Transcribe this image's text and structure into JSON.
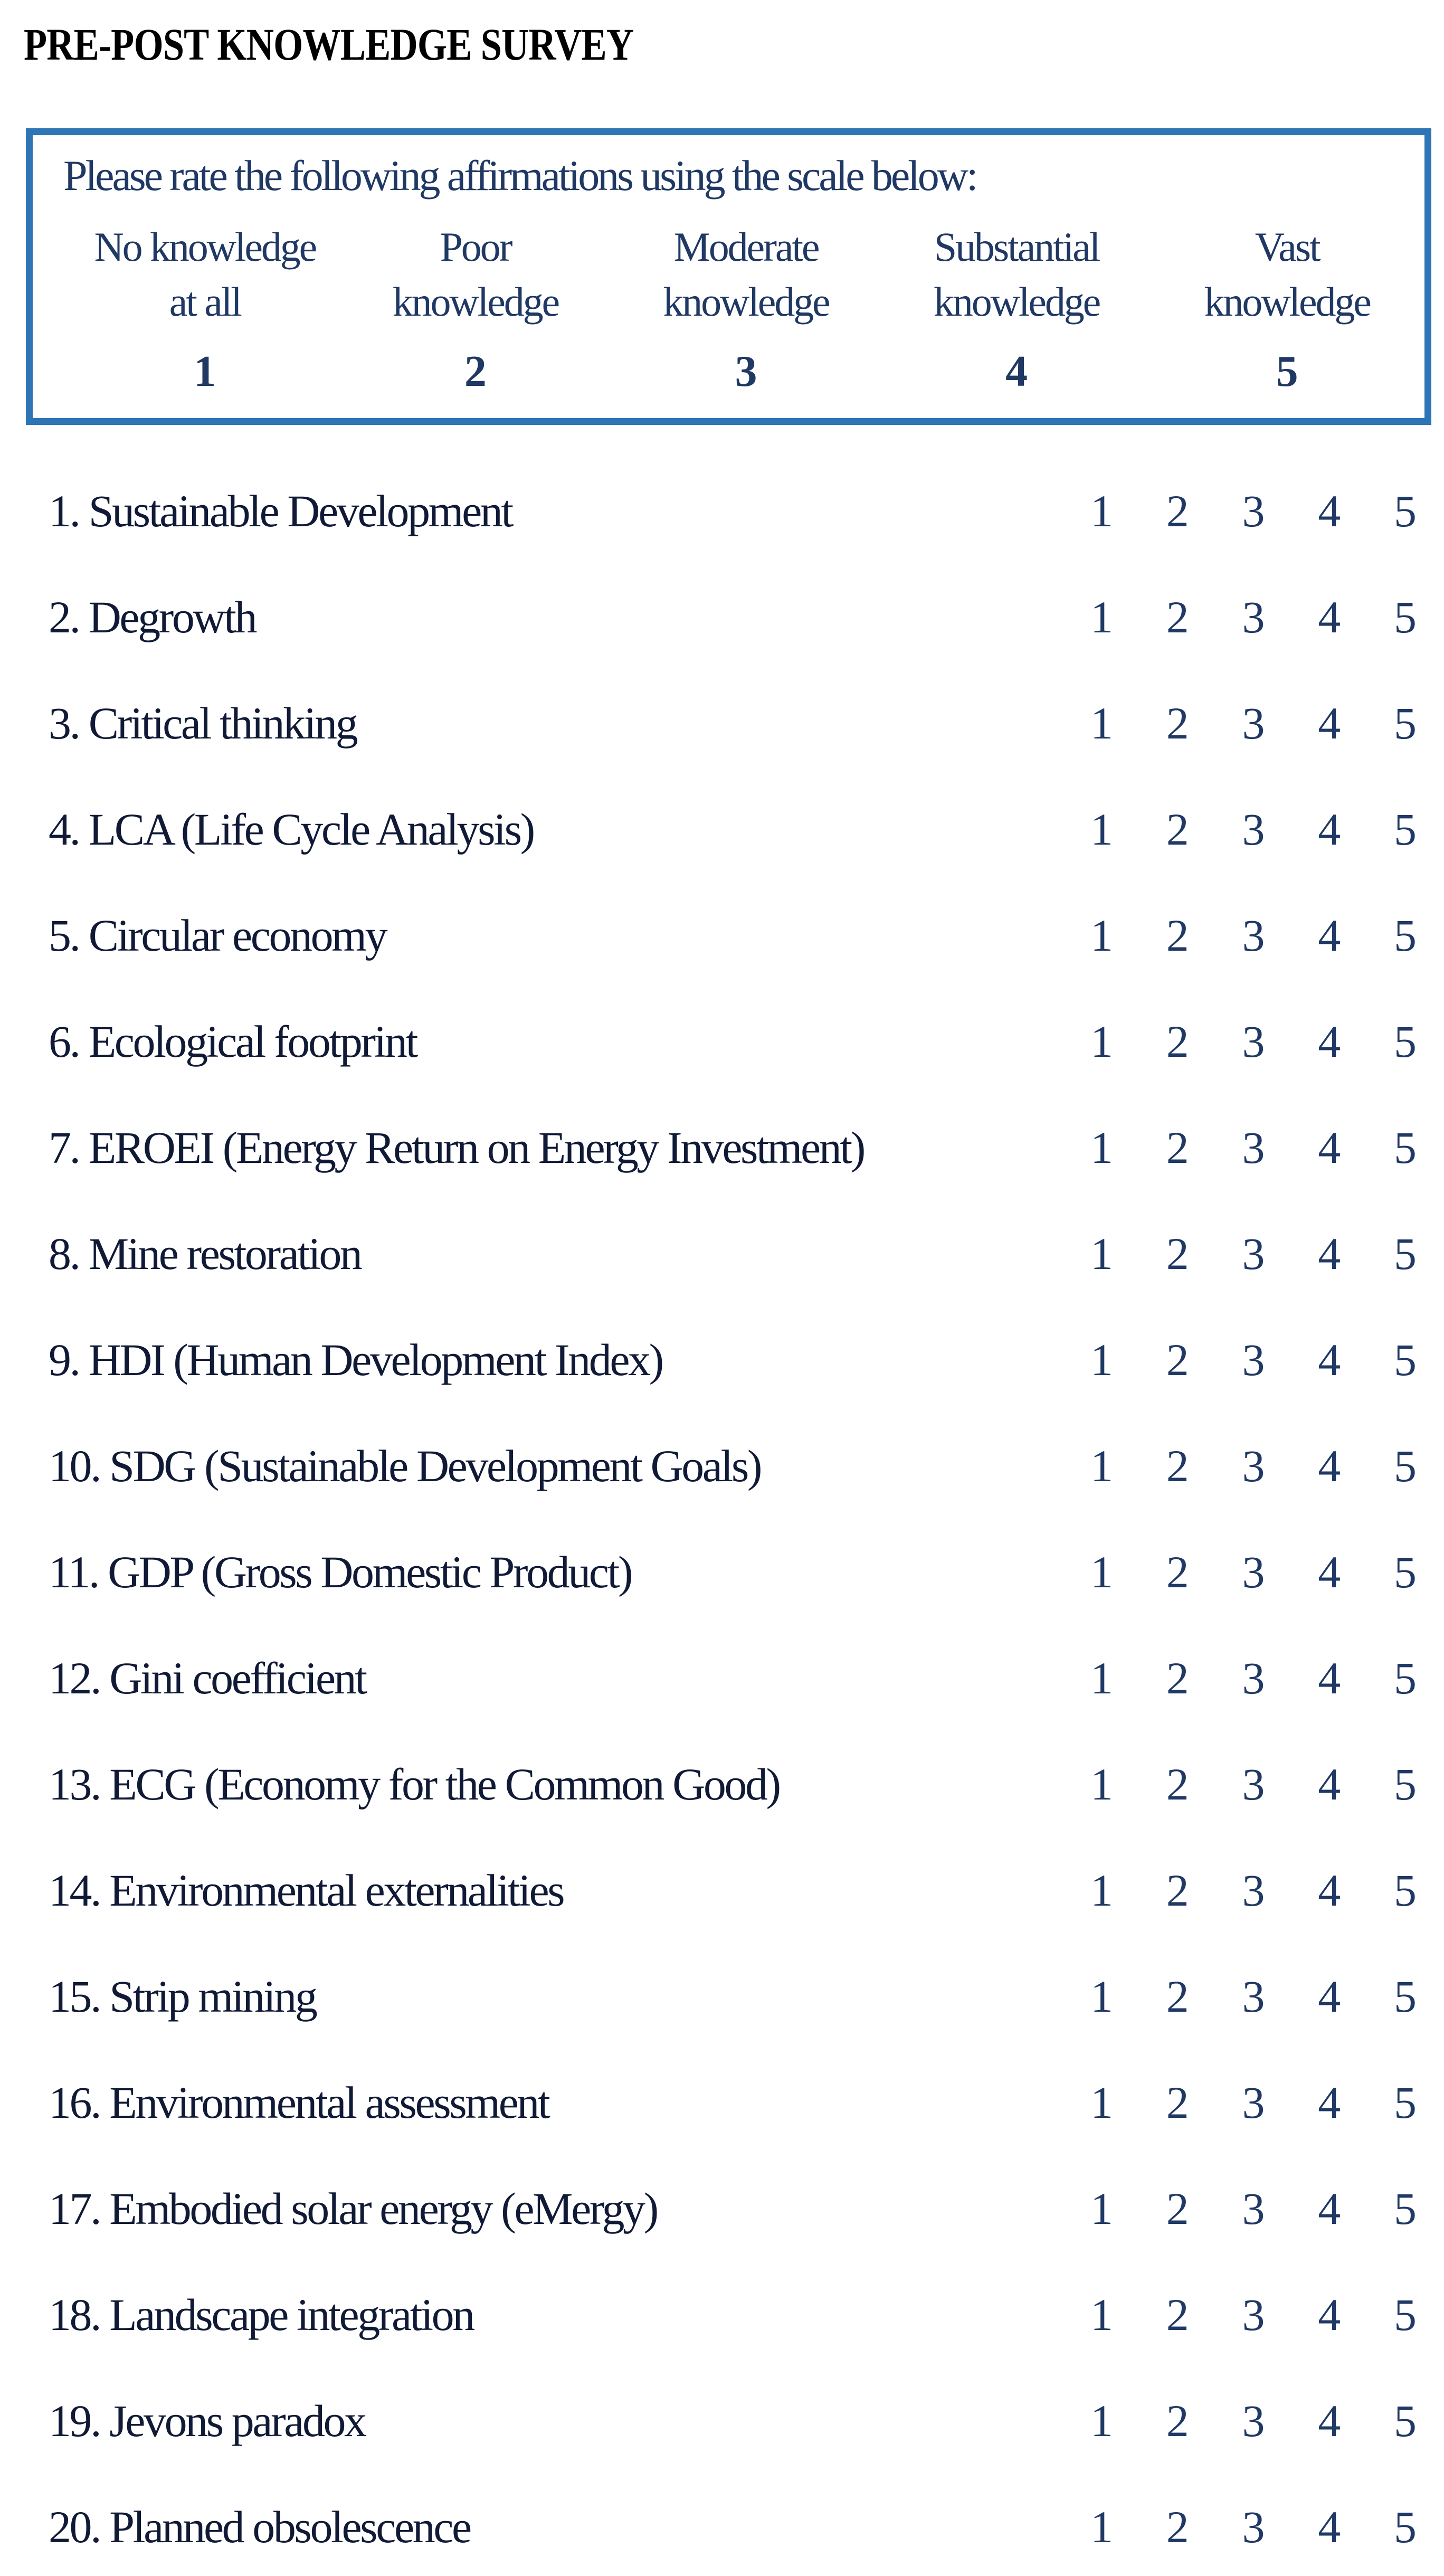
{
  "title": "PRE-POST KNOWLEDGE SURVEY",
  "scale_box": {
    "instructions": "Please rate the following affirmations using the scale below:",
    "options": [
      {
        "line1": "No knowledge",
        "line2": "at all",
        "value": "1"
      },
      {
        "line1": "Poor",
        "line2": "knowledge",
        "value": "2"
      },
      {
        "line1": "Moderate",
        "line2": "knowledge",
        "value": "3"
      },
      {
        "line1": "Substantial",
        "line2": "knowledge",
        "value": "4"
      },
      {
        "line1": "Vast",
        "line2": "knowledge",
        "value": "5"
      }
    ]
  },
  "rating_values": [
    "1",
    "2",
    "3",
    "4",
    "5"
  ],
  "items": [
    {
      "number": "1.",
      "text": "Sustainable Development"
    },
    {
      "number": "2.",
      "text": "Degrowth"
    },
    {
      "number": "3.",
      "text": "Critical thinking"
    },
    {
      "number": "4.",
      "text": "LCA (Life Cycle Analysis)"
    },
    {
      "number": "5.",
      "text": "Circular economy"
    },
    {
      "number": "6.",
      "text": "Ecological footprint"
    },
    {
      "number": "7.",
      "text": "EROEI (Energy Return on Energy Investment)"
    },
    {
      "number": "8.",
      "text": "Mine restoration"
    },
    {
      "number": "9.",
      "text": "HDI (Human Development Index)"
    },
    {
      "number": "10.",
      "text": "SDG (Sustainable Development Goals)"
    },
    {
      "number": "11.",
      "text": "GDP (Gross Domestic Product)"
    },
    {
      "number": "12.",
      "text": "Gini coefficient"
    },
    {
      "number": "13.",
      "text": "ECG (Economy for the Common Good)"
    },
    {
      "number": "14.",
      "text": "Environmental externalities"
    },
    {
      "number": "15.",
      "text": "Strip mining"
    },
    {
      "number": "16.",
      "text": "Environmental assessment"
    },
    {
      "number": "17.",
      "text": "Embodied solar energy (eMergy)"
    },
    {
      "number": "18.",
      "text": "Landscape integration"
    },
    {
      "number": "19.",
      "text": "Jevons paradox"
    },
    {
      "number": "20.",
      "text": "Planned obsolescence"
    }
  ],
  "colors": {
    "box_border": "#2E75B6",
    "box_text": "#1F3864",
    "item_text": "#101A36",
    "rating_text": "#1F3864",
    "title": "#000000"
  }
}
